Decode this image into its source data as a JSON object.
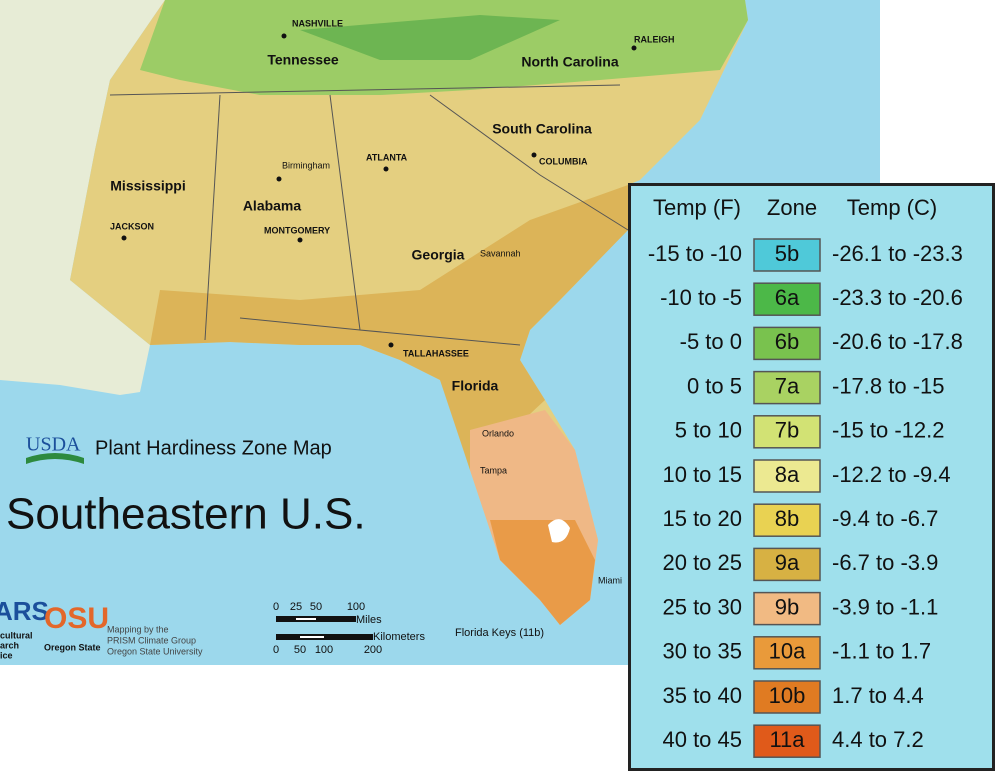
{
  "map": {
    "title": "Southeastern U.S.",
    "subtitle": "Plant Hardiness Zone Map",
    "logo": "USDA",
    "states": [
      "Tennessee",
      "North Carolina",
      "South Carolina",
      "Mississippi",
      "Alabama",
      "Georgia",
      "Florida"
    ],
    "cities": [
      "NASHVILLE",
      "RALEIGH",
      "Birmingham",
      "ATLANTA",
      "COLUMBIA",
      "JACKSON",
      "MONTGOMERY",
      "Savannah",
      "TALLAHASSEE",
      "Orlando",
      "Tampa",
      "Miami"
    ],
    "note": "Florida Keys (11b)",
    "credits": [
      "Mapping by the",
      "PRISM Climate Group",
      "Oregon State University"
    ],
    "ars": [
      "cultural",
      "arch",
      "ice"
    ],
    "osu": [
      "OSU",
      "Oregon State"
    ],
    "scale": {
      "miles_label": "Miles",
      "km_label": "Kilometers",
      "miles_ticks": [
        0,
        25,
        50,
        100
      ],
      "km_ticks": [
        0,
        50,
        100,
        200
      ]
    }
  },
  "legend": {
    "headers": [
      "Temp (F)",
      "Zone",
      "Temp (C)"
    ],
    "rows": [
      [
        "-15 to -10",
        "5b",
        "-26.1 to -23.3"
      ],
      [
        "-10 to -5",
        "6a",
        "-23.3 to -20.6"
      ],
      [
        "-5 to 0",
        "6b",
        "-20.6 to -17.8"
      ],
      [
        "0 to 5",
        "7a",
        "-17.8 to -15"
      ],
      [
        "5 to 10",
        "7b",
        "-15 to -12.2"
      ],
      [
        "10 to 15",
        "8a",
        "-12.2 to -9.4"
      ],
      [
        "15 to 20",
        "8b",
        "-9.4 to -6.7"
      ],
      [
        "20 to 25",
        "9a",
        "-6.7 to -3.9"
      ],
      [
        "25 to 30",
        "9b",
        "-3.9 to -1.1"
      ],
      [
        "30 to 35",
        "10a",
        "-1.1 to 1.7"
      ],
      [
        "35 to 40",
        "10b",
        "1.7 to 4.4"
      ],
      [
        "40 to 45",
        "11a",
        "4.4 to 7.2"
      ]
    ],
    "colors": [
      "#4fc9d9",
      "#4cb848",
      "#79c24e",
      "#a9d262",
      "#d2e274",
      "#ece991",
      "#e9d252",
      "#d7b143",
      "#f1ba83",
      "#e99a3a",
      "#e07b22",
      "#e05a1a"
    ]
  }
}
